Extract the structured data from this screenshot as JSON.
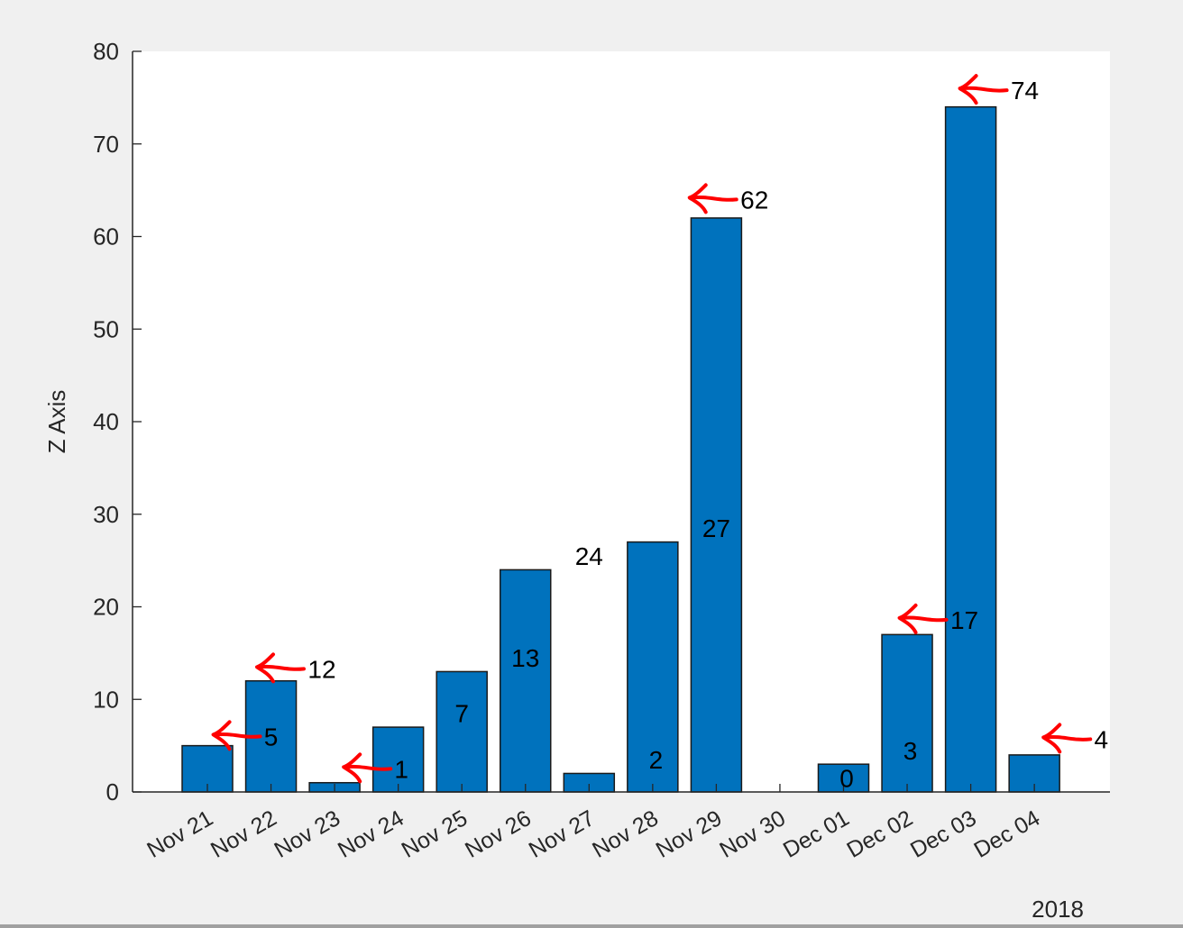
{
  "chart_data": {
    "type": "bar",
    "title": "",
    "xlabel": "",
    "ylabel": "Z Axis",
    "x_secondary_label": "2018",
    "ylim": [
      0,
      80
    ],
    "yticks": [
      0,
      10,
      20,
      30,
      40,
      50,
      60,
      70,
      80
    ],
    "grid": false,
    "legend": null,
    "bar_color": "#0072bd",
    "annotation_color": "#ff0000",
    "categories": [
      "Nov 21",
      "Nov 22",
      "Nov 23",
      "Nov 24",
      "Nov 25",
      "Nov 26",
      "Nov 27",
      "Nov 28",
      "Nov 29",
      "Nov 30",
      "Dec 01",
      "Dec 02",
      "Dec 03",
      "Dec 04"
    ],
    "values": [
      5,
      12,
      1,
      7,
      13,
      24,
      2,
      27,
      62,
      0,
      3,
      17,
      74,
      4
    ],
    "data_labels": [
      {
        "text": "5",
        "x_index": 1.0,
        "y": 6.0,
        "arrow": true
      },
      {
        "text": "12",
        "x_index": 1.8,
        "y": 13.3,
        "arrow": true
      },
      {
        "text": "1",
        "x_index": 3.05,
        "y": 2.5,
        "arrow": true
      },
      {
        "text": "7",
        "x_index": 4.0,
        "y": 8.5,
        "arrow": false
      },
      {
        "text": "13",
        "x_index": 5.0,
        "y": 14.5,
        "arrow": false
      },
      {
        "text": "24",
        "x_index": 6.0,
        "y": 25.5,
        "arrow": false
      },
      {
        "text": "2",
        "x_index": 7.05,
        "y": 3.5,
        "arrow": false
      },
      {
        "text": "27",
        "x_index": 8.0,
        "y": 28.5,
        "arrow": false
      },
      {
        "text": "62",
        "x_index": 8.6,
        "y": 64.0,
        "arrow": true
      },
      {
        "text": "0",
        "x_index": 10.05,
        "y": 1.5,
        "arrow": false
      },
      {
        "text": "3",
        "x_index": 11.05,
        "y": 4.5,
        "arrow": false
      },
      {
        "text": "17",
        "x_index": 11.9,
        "y": 18.6,
        "arrow": true
      },
      {
        "text": "74",
        "x_index": 12.85,
        "y": 75.8,
        "arrow": true
      },
      {
        "text": "4",
        "x_index": 14.05,
        "y": 5.7,
        "arrow": true
      }
    ]
  }
}
